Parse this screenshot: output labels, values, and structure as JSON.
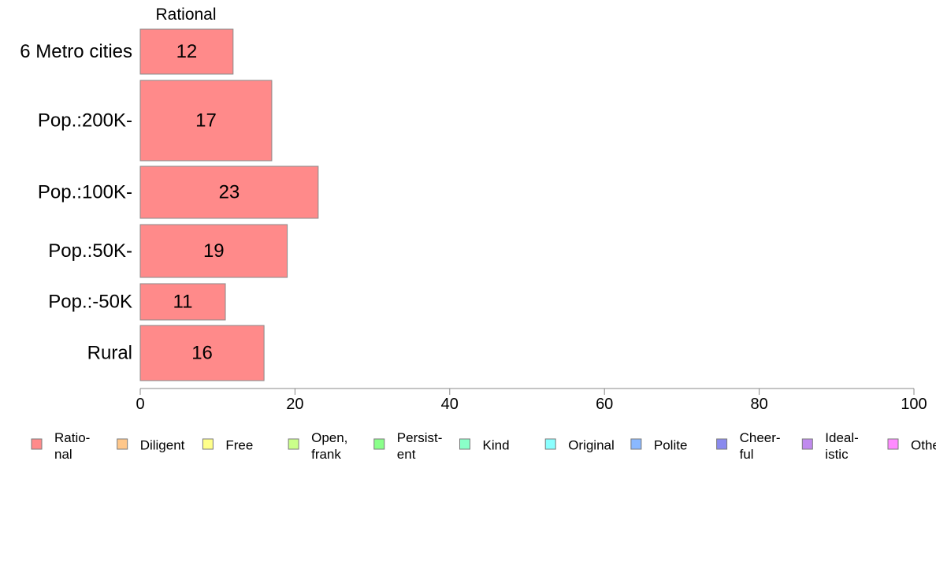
{
  "chart_data": {
    "type": "bar",
    "orientation": "horizontal",
    "header": "Rational",
    "categories": [
      "6 Metro cities",
      "Pop.:200K-",
      "Pop.:100K-",
      "Pop.:50K-",
      "Pop.:-50K",
      "Rural"
    ],
    "series": [
      {
        "name": "Rational",
        "values": [
          12,
          17,
          23,
          19,
          11,
          16
        ],
        "color": "#ff8a8a"
      }
    ],
    "xlim": [
      0,
      100
    ],
    "xticks": [
      0,
      20,
      40,
      60,
      80,
      100
    ],
    "grid": false,
    "legend": {
      "placement": "bottom",
      "items": [
        {
          "label": "Ratio-\nnal",
          "color": "#ff8a8a"
        },
        {
          "label": "Diligent",
          "color": "#ffc78a"
        },
        {
          "label": "Free",
          "color": "#ffff8a"
        },
        {
          "label": "Open,\nfrank",
          "color": "#caff8a"
        },
        {
          "label": "Persist-\nent",
          "color": "#8aff8a"
        },
        {
          "label": "Kind",
          "color": "#8affc8"
        },
        {
          "label": "Original",
          "color": "#8affff"
        },
        {
          "label": "Polite",
          "color": "#8ab8ff"
        },
        {
          "label": "Cheer-\nful",
          "color": "#8a8aee"
        },
        {
          "label": "Ideal-\nistic",
          "color": "#c08aee"
        },
        {
          "label": "Other",
          "color": "#ff8aff"
        }
      ]
    }
  }
}
